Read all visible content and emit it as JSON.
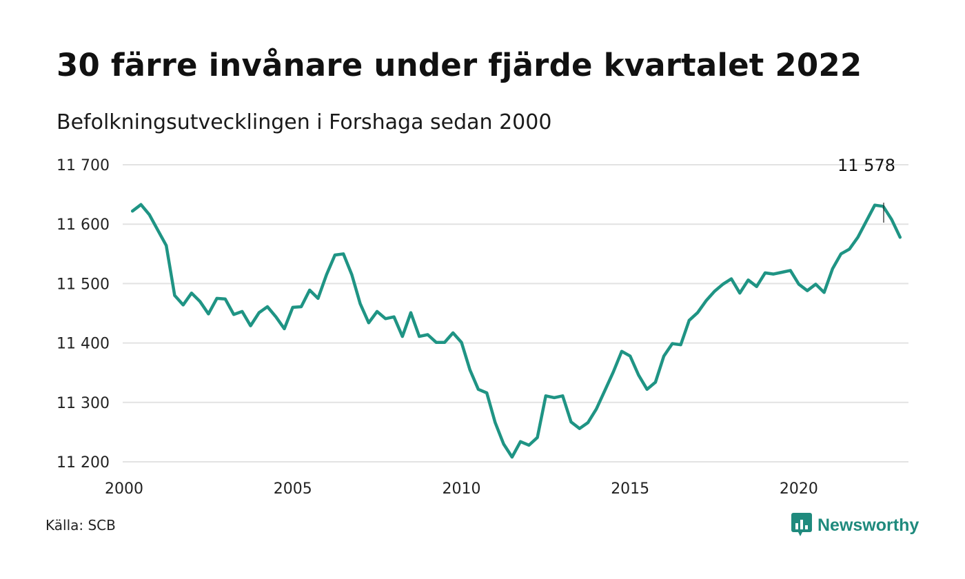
{
  "title": "30 färre invånare under fjärde kvartalet 2022",
  "subtitle": "Befolkningsutvecklingen i Forshaga sedan 2000",
  "source": "Källa: SCB",
  "brand": "Newsworthy",
  "colors": {
    "line": "#1f9484",
    "grid": "#e2e2e2",
    "brand": "#1f8a7d"
  },
  "chart_data": {
    "type": "line",
    "title": "30 färre invånare under fjärde kvartalet 2022",
    "subtitle": "Befolkningsutvecklingen i Forshaga sedan 2000",
    "xlabel": "",
    "ylabel": "",
    "xlim": [
      2000,
      2023.25
    ],
    "ylim": [
      11200,
      11700
    ],
    "x_ticks": [
      2000,
      2005,
      2010,
      2015,
      2020
    ],
    "x_tick_labels": [
      "2000",
      "2005",
      "2010",
      "2015",
      "2020"
    ],
    "y_ticks": [
      11200,
      11300,
      11400,
      11500,
      11600,
      11700
    ],
    "y_tick_labels": [
      "11 200",
      "11 300",
      "11 400",
      "11 500",
      "11 600",
      "11 700"
    ],
    "grid": true,
    "last_value_label": "11 578",
    "series": [
      {
        "x": [
          2000.25,
          2000.5,
          2000.75,
          2001.0,
          2001.25,
          2001.5,
          2001.75,
          2002.0,
          2002.25,
          2002.5,
          2002.75,
          2003.0,
          2003.25,
          2003.5,
          2003.75,
          2004.0,
          2004.25,
          2004.5,
          2004.75,
          2005.0,
          2005.25,
          2005.5,
          2005.75,
          2006.0,
          2006.25,
          2006.5,
          2006.75,
          2007.0,
          2007.25,
          2007.5,
          2007.75,
          2008.0,
          2008.25,
          2008.5,
          2008.75,
          2009.0,
          2009.25,
          2009.5,
          2009.75,
          2010.0,
          2010.25,
          2010.5,
          2010.75,
          2011.0,
          2011.25,
          2011.5,
          2011.75,
          2012.0,
          2012.25,
          2012.5,
          2012.75,
          2013.0,
          2013.25,
          2013.5,
          2013.75,
          2014.0,
          2014.25,
          2014.5,
          2014.75,
          2015.0,
          2015.25,
          2015.5,
          2015.75,
          2016.0,
          2016.25,
          2016.5,
          2016.75,
          2017.0,
          2017.25,
          2017.5,
          2017.75,
          2018.0,
          2018.25,
          2018.5,
          2018.75,
          2019.0,
          2019.25,
          2019.5,
          2019.75,
          2020.0,
          2020.25,
          2020.5,
          2020.75,
          2021.0,
          2021.25,
          2021.5,
          2021.75,
          2022.0,
          2022.25,
          2022.5,
          2022.75,
          2023.0
        ],
        "values": [
          11622,
          11633,
          11616,
          11590,
          11564,
          11480,
          11464,
          11484,
          11470,
          11449,
          11475,
          11474,
          11448,
          11453,
          11429,
          11451,
          11461,
          11444,
          11424,
          11460,
          11461,
          11489,
          11475,
          11515,
          11548,
          11550,
          11515,
          11466,
          11434,
          11453,
          11441,
          11444,
          11411,
          11451,
          11411,
          11414,
          11401,
          11401,
          11417,
          11401,
          11355,
          11322,
          11316,
          11266,
          11230,
          11208,
          11234,
          11228,
          11241,
          11311,
          11308,
          11311,
          11267,
          11256,
          11266,
          11289,
          11320,
          11351,
          11386,
          11378,
          11346,
          11322,
          11334,
          11378,
          11399,
          11397,
          11438,
          11451,
          11471,
          11487,
          11499,
          11508,
          11484,
          11506,
          11495,
          11518,
          11516,
          11519,
          11522,
          11499,
          11488,
          11499,
          11485,
          11525,
          11550,
          11558,
          11578,
          11605,
          11632,
          11630,
          11608,
          11578
        ]
      }
    ]
  }
}
